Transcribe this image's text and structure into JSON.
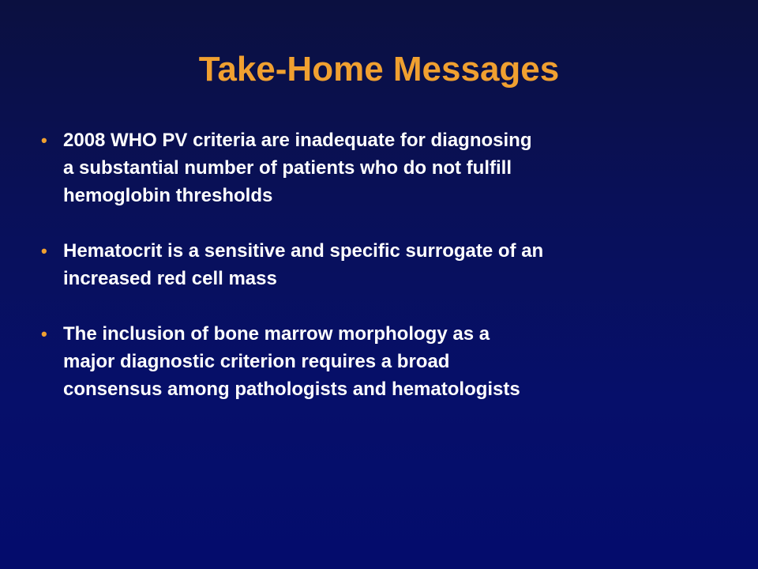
{
  "slide": {
    "title": "Take-Home Messages",
    "title_color": "#f0a030",
    "bullet_symbol": "•",
    "bullets": [
      {
        "lines": [
          "2008 WHO PV criteria are inadequate for diagnosing",
          "a substantial number of patients who do not fulfill",
          "hemoglobin thresholds"
        ]
      },
      {
        "lines": [
          "Hematocrit is a sensitive and specific surrogate of an",
          "increased red cell mass"
        ]
      },
      {
        "lines": [
          "The inclusion of bone marrow morphology as a",
          "major diagnostic criterion requires a broad",
          "consensus among pathologists and hematologists"
        ]
      }
    ]
  }
}
